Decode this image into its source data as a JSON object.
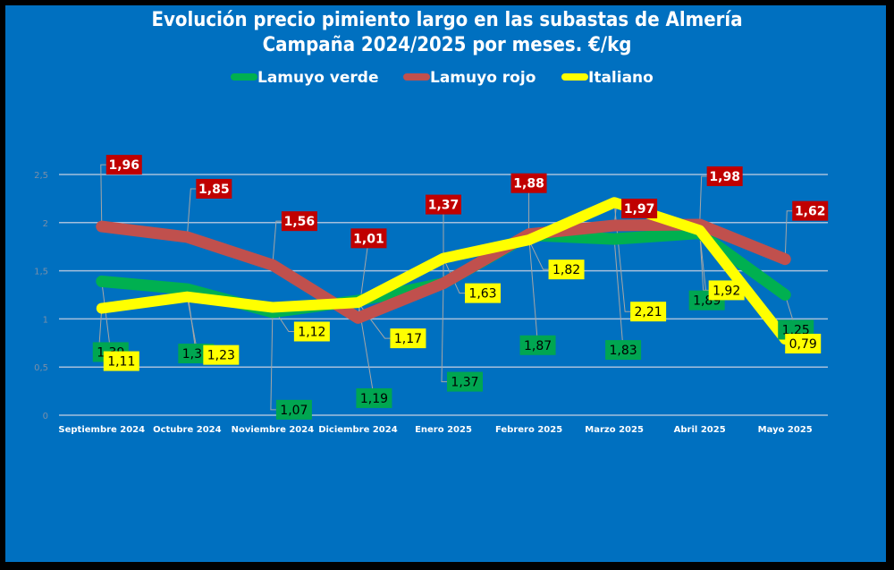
{
  "chart_data": {
    "type": "line",
    "title": "Evolución  precio pimiento largo en las subastas de Almería",
    "subtitle": "Campaña 2024/2025 por meses. €/kg",
    "xlabel": "",
    "ylabel": "",
    "ylim": [
      0,
      2.5
    ],
    "yticks": [
      "0",
      "0,5",
      "1",
      "1,5",
      "2",
      "2,5"
    ],
    "ytick_values": [
      0,
      0.5,
      1,
      1.5,
      2,
      2.5
    ],
    "grid": true,
    "legend": "top",
    "categories": [
      "Septiembre 2024",
      "Octubre 2024",
      "Noviembre 2024",
      "Diciembre 2024",
      "Enero 2025",
      "Febrero 2025",
      "Marzo 2025",
      "Abril 2025",
      "Mayo 2025"
    ],
    "series": [
      {
        "name": "Lamuyo verde",
        "color": "#00b050",
        "label_bg": "#00a651",
        "label_fg": "#000000",
        "values": [
          1.39,
          1.31,
          1.07,
          1.19,
          1.37,
          1.87,
          1.83,
          1.89,
          1.25
        ],
        "labels": [
          "1,39",
          "1,31",
          "1,07",
          "1,19",
          "1,37",
          "1,87",
          "1,83",
          "1,89",
          "1,25"
        ]
      },
      {
        "name": "Lamuyo rojo",
        "color": "#c0504d",
        "label_bg": "#c00000",
        "label_fg": "#ffffff",
        "values": [
          1.96,
          1.85,
          1.56,
          1.01,
          1.37,
          1.88,
          1.97,
          1.98,
          1.62
        ],
        "labels": [
          "1,96",
          "1,85",
          "1,56",
          "1,01",
          "1,37",
          "1,88",
          "1,97",
          "1,98",
          "1,62"
        ]
      },
      {
        "name": "Italiano",
        "color": "#ffff00",
        "label_bg": "#ffff00",
        "label_fg": "#000000",
        "values": [
          1.11,
          1.23,
          1.12,
          1.17,
          1.63,
          1.82,
          2.21,
          1.92,
          0.79
        ],
        "labels": [
          "1,11",
          "1,23",
          "1,12",
          "1,17",
          "1,63",
          "1,82",
          "2,21",
          "1,92",
          "0,79"
        ]
      }
    ]
  }
}
